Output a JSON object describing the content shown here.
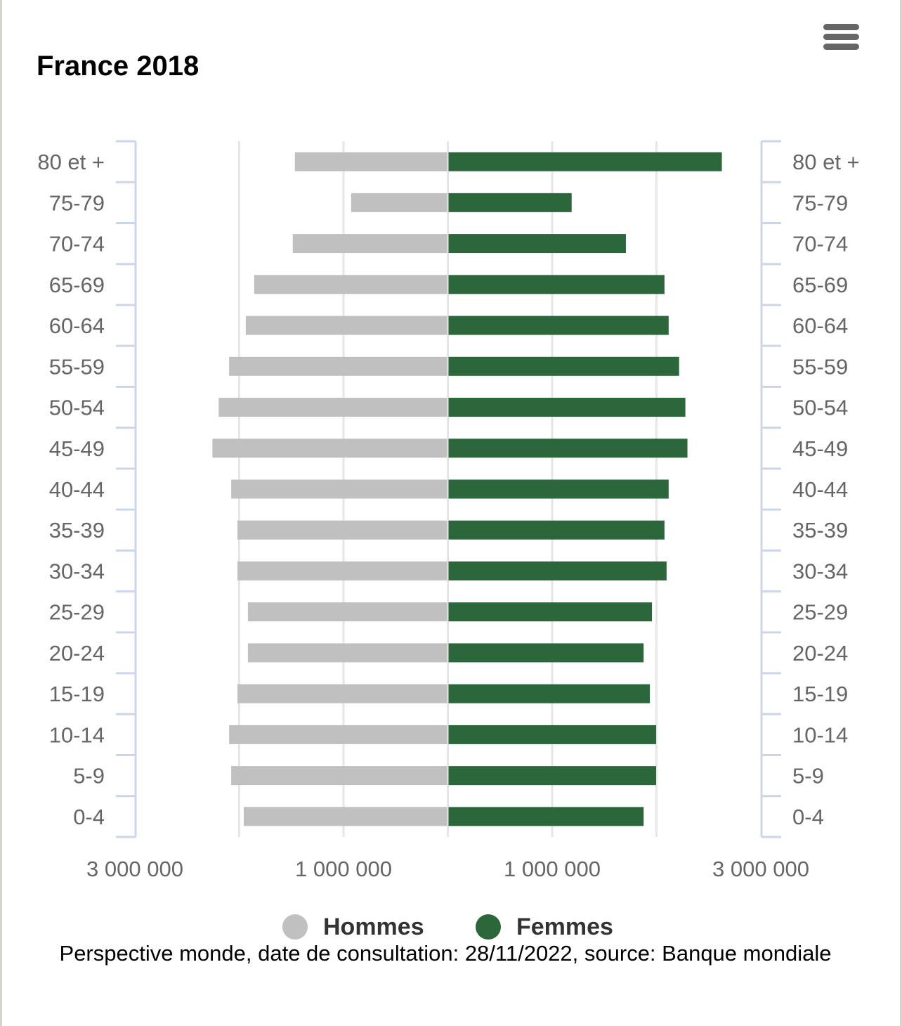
{
  "header": {
    "title": "France 2018",
    "menu_icon": "hamburger-menu-icon"
  },
  "colors": {
    "hommes": "#c0c0c0",
    "femmes": "#2b673b",
    "axis": "#ccd6eb",
    "grid": "#e6e6e6",
    "label": "#666666"
  },
  "legend": [
    {
      "label": "Hommes",
      "color": "#c0c0c0"
    },
    {
      "label": "Femmes",
      "color": "#2b673b"
    }
  ],
  "footnote": "Perspective monde, date de consultation: 28/11/2022, source: Banque mondiale",
  "chart_data": {
    "type": "bar",
    "orientation": "horizontal",
    "subtype": "population-pyramid",
    "title": "France 2018",
    "categories": [
      "80 et +",
      "75-79",
      "70-74",
      "65-69",
      "60-64",
      "55-59",
      "50-54",
      "45-49",
      "40-44",
      "35-39",
      "30-34",
      "25-29",
      "20-24",
      "15-19",
      "10-14",
      "5-9",
      "0-4"
    ],
    "series": [
      {
        "name": "Hommes",
        "side": "left",
        "values": [
          1460000,
          920000,
          1480000,
          1850000,
          1930000,
          2090000,
          2190000,
          2250000,
          2070000,
          2010000,
          2010000,
          1910000,
          1910000,
          2010000,
          2090000,
          2070000,
          1950000
        ]
      },
      {
        "name": "Femmes",
        "side": "right",
        "values": [
          2620000,
          1180000,
          1700000,
          2070000,
          2110000,
          2210000,
          2270000,
          2290000,
          2110000,
          2070000,
          2090000,
          1950000,
          1870000,
          1930000,
          1990000,
          1990000,
          1870000
        ]
      }
    ],
    "xlabel": "",
    "ylabel": "",
    "xlim": [
      -3000000,
      3000000
    ],
    "x_ticks": [
      -3000000,
      -2000000,
      -1000000,
      0,
      1000000,
      2000000,
      3000000
    ],
    "x_tick_labels": [
      {
        "value": -3000000,
        "label": "3 000 000"
      },
      {
        "value": -1000000,
        "label": "1 000 000"
      },
      {
        "value": 1000000,
        "label": "1 000 000"
      },
      {
        "value": 3000000,
        "label": "3 000 000"
      }
    ],
    "grid": true,
    "legend_position": "bottom-center",
    "category_axes": [
      "left",
      "right"
    ]
  }
}
